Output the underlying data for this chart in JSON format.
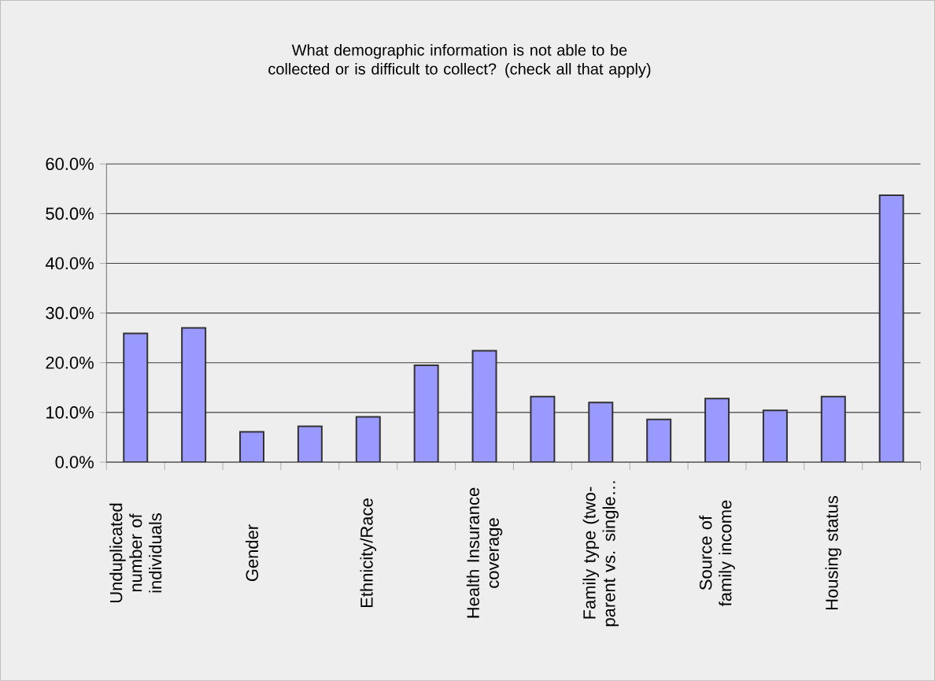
{
  "chart_data": {
    "type": "bar",
    "title": "What demographic information is not able to be collected or is difficult to collect? (check all that apply)",
    "categories": [
      "Unduplicated number of individuals",
      null,
      "Gender",
      null,
      "Ethnicity/Race",
      null,
      "Health Insurance coverage",
      null,
      "Family type (two-parent vs. single…",
      null,
      "Source of family income",
      null,
      "Housing status",
      null
    ],
    "values": [
      25.9,
      27.0,
      6.1,
      7.2,
      9.1,
      19.5,
      22.4,
      13.2,
      12.0,
      8.6,
      12.8,
      10.4,
      13.2,
      53.7
    ],
    "color": "#9999ff",
    "ylim": [
      0,
      60
    ],
    "yticks": [
      {
        "value": 0,
        "label": "0.0%"
      },
      {
        "value": 10,
        "label": "10.0%"
      },
      {
        "value": 20,
        "label": "20.0%"
      },
      {
        "value": 30,
        "label": "30.0%"
      },
      {
        "value": 40,
        "label": "40.0%"
      },
      {
        "value": 50,
        "label": "50.0%"
      },
      {
        "value": 60,
        "label": "60.0%"
      }
    ],
    "grid": "y"
  }
}
